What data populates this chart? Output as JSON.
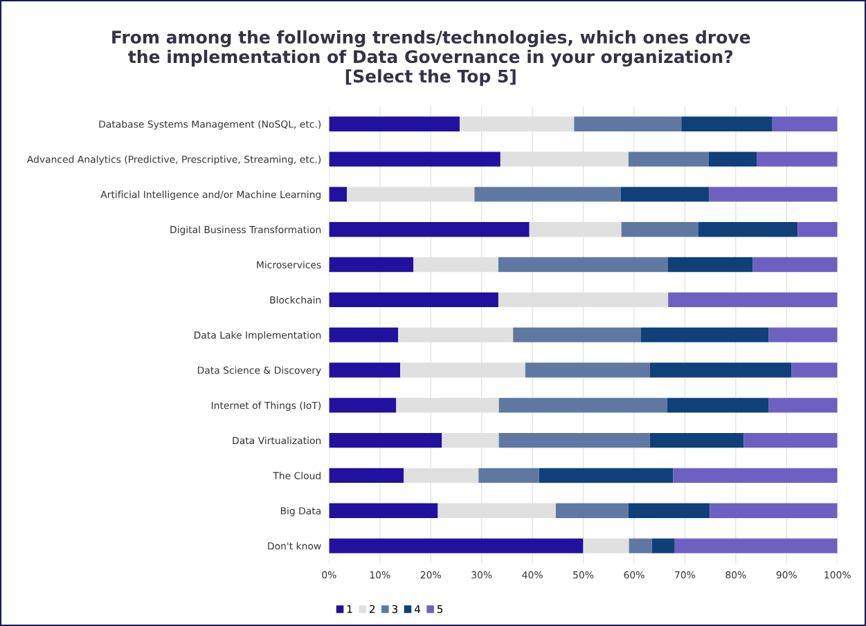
{
  "chart_data": {
    "type": "bar",
    "orientation": "horizontal",
    "stacked": true,
    "title": "From among the following trends/technologies, which ones drove\nthe implementation of Data Governance in your organization?\n[Select the Top 5]",
    "categories": [
      "Database Systems Management (NoSQL, etc.)",
      "Advanced Analytics (Predictive, Prescriptive, Streaming, etc.)",
      "Artificial Intelligence and/or Machine Learning",
      "Digital Business Transformation",
      "Microservices",
      "Blockchain",
      "Data Lake Implementation",
      "Data Science & Discovery",
      "Internet of Things (IoT)",
      "Data Virtualization",
      "The Cloud",
      "Big Data",
      "Don't know"
    ],
    "series": [
      {
        "name": "1",
        "color": "#22109e",
        "values": [
          25.7,
          33.7,
          3.5,
          39.4,
          16.6,
          33.3,
          13.6,
          14.0,
          13.2,
          22.2,
          14.7,
          21.4,
          50.0
        ]
      },
      {
        "name": "2",
        "color": "#e0e0e0",
        "values": [
          22.5,
          25.2,
          25.1,
          18.1,
          16.7,
          33.4,
          22.6,
          24.6,
          20.2,
          11.2,
          14.7,
          23.2,
          9.0
        ]
      },
      {
        "name": "3",
        "color": "#5f78a2",
        "values": [
          21.1,
          15.8,
          28.8,
          15.1,
          33.3,
          0,
          25.1,
          24.5,
          33.1,
          29.7,
          11.9,
          14.3,
          4.5
        ]
      },
      {
        "name": "4",
        "color": "#10407a",
        "values": [
          17.9,
          9.5,
          17.4,
          19.6,
          16.7,
          0,
          25.2,
          27.9,
          20.0,
          18.5,
          26.4,
          16.0,
          4.5
        ]
      },
      {
        "name": "5",
        "color": "#6e60c2",
        "values": [
          12.8,
          15.8,
          25.2,
          7.8,
          16.7,
          33.3,
          13.5,
          9.0,
          13.5,
          18.4,
          32.3,
          25.1,
          32.0
        ]
      }
    ],
    "xlim": [
      0,
      100
    ],
    "xticks": [
      {
        "value": 0,
        "label": "0%"
      },
      {
        "value": 10,
        "label": "10%"
      },
      {
        "value": 20,
        "label": "20%"
      },
      {
        "value": 30,
        "label": "30%"
      },
      {
        "value": 40,
        "label": "40%"
      },
      {
        "value": 50,
        "label": "50%"
      },
      {
        "value": 60,
        "label": "60%"
      },
      {
        "value": 70,
        "label": "70%"
      },
      {
        "value": 80,
        "label": "80%"
      },
      {
        "value": 90,
        "label": "90%"
      },
      {
        "value": 100,
        "label": "100%"
      }
    ],
    "grid": "x",
    "legend": "bottom"
  }
}
